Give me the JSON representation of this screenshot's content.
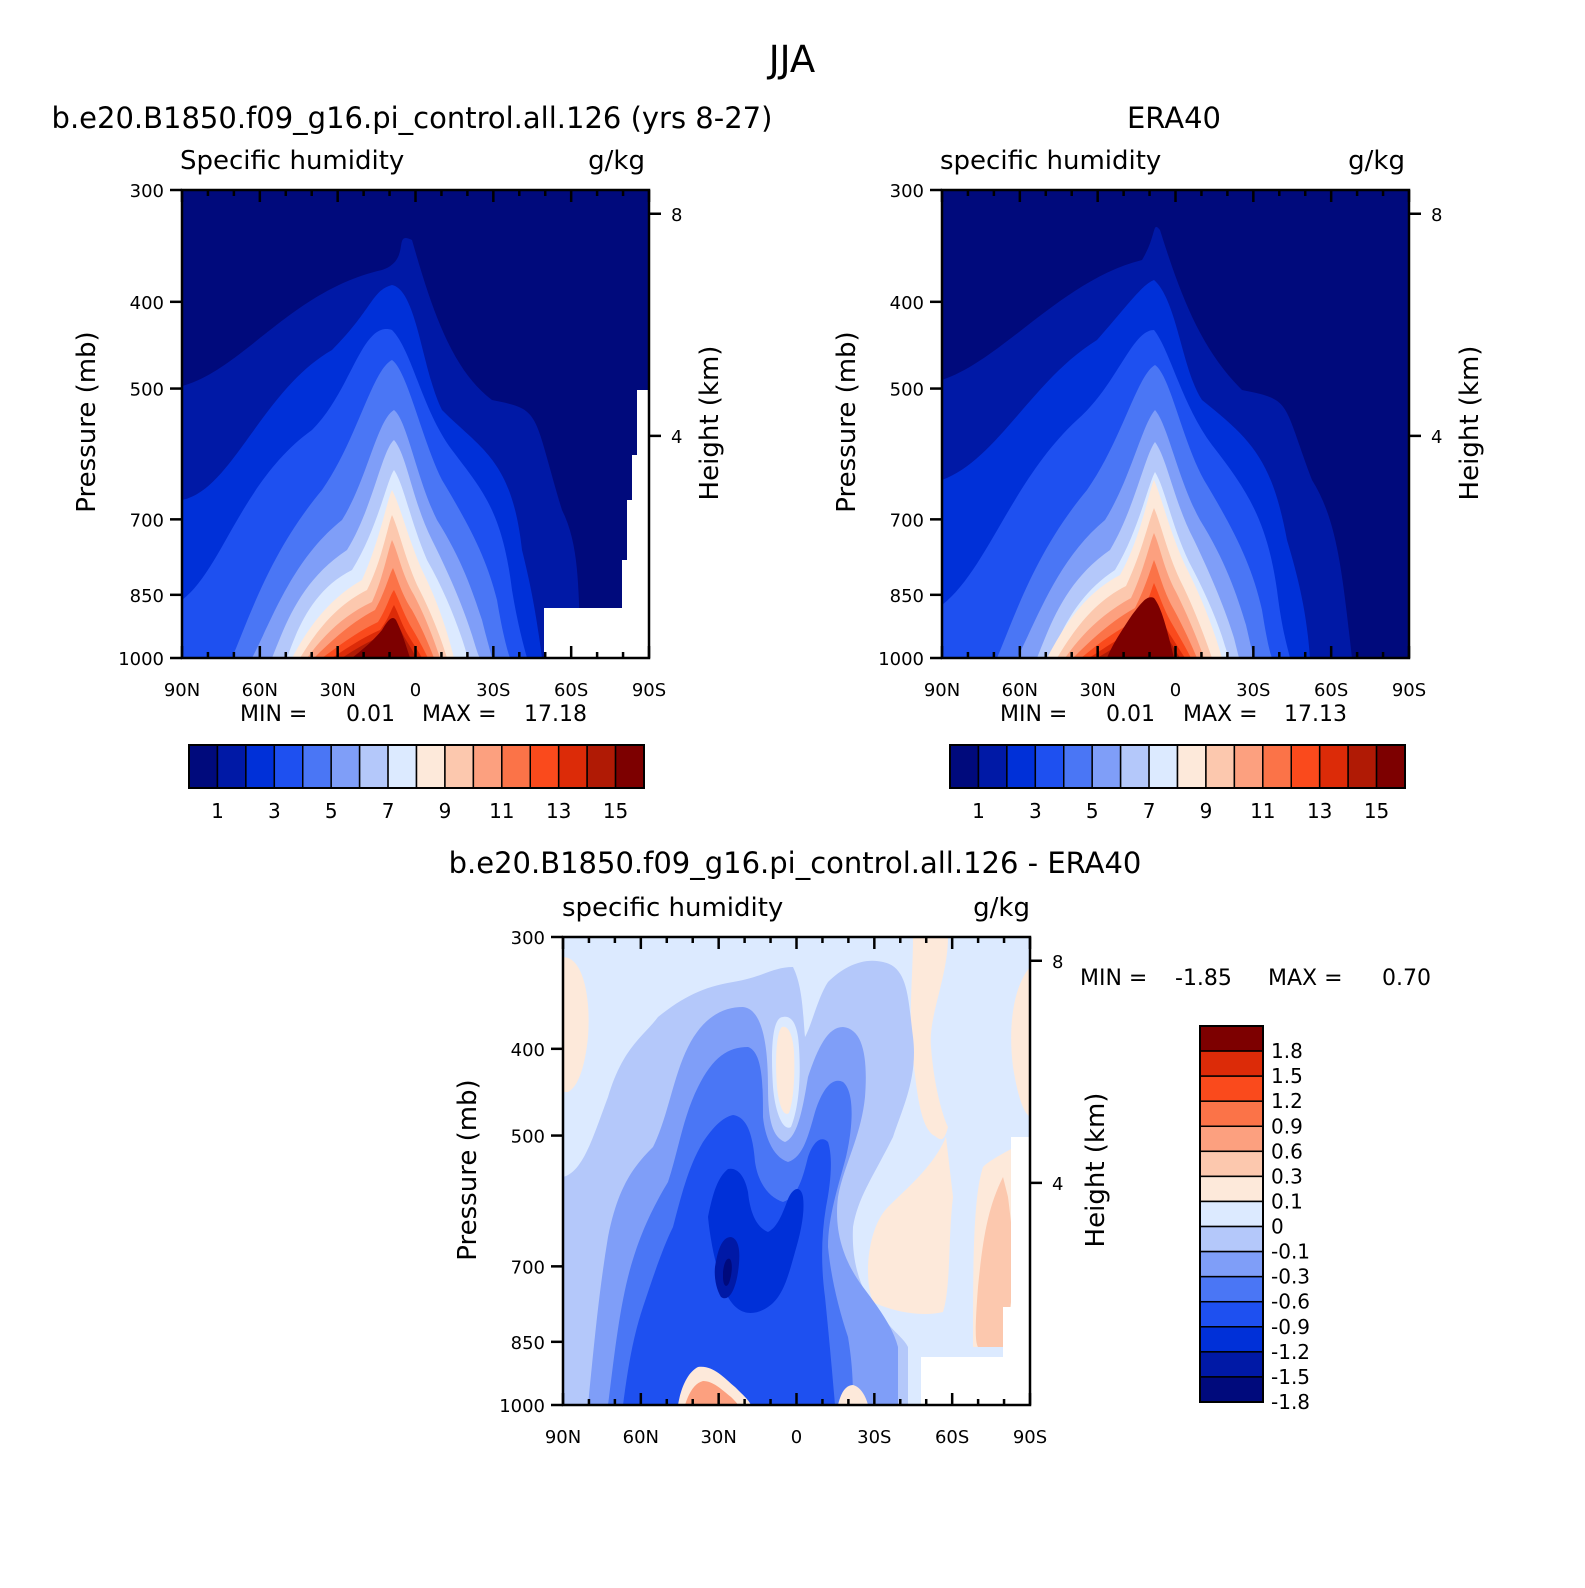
{
  "figure": {
    "title": "JJA"
  },
  "colors": {
    "abs_palette": [
      "#000a7c",
      "#0019a6",
      "#0030d8",
      "#1e50f0",
      "#4a76f5",
      "#7f9ef8",
      "#b4c8fa",
      "#dceaff",
      "#fde9da",
      "#fcc8ae",
      "#fca07f",
      "#fb7348",
      "#fa4a1c",
      "#dc2b08",
      "#b01a05",
      "#7d0000"
    ],
    "diff_palette": [
      "#000a7c",
      "#0019a6",
      "#0030d8",
      "#1e50f0",
      "#4a76f5",
      "#7f9ef8",
      "#b4c8fa",
      "#dceaff",
      "#fde9da",
      "#fcc8ae",
      "#fca07f",
      "#fb7348",
      "#fa4a1c",
      "#dc2b08",
      "#7d0000"
    ]
  },
  "panels": [
    {
      "title": "b.e20.B1850.f09_g16.pi_control.all.126 (yrs 8-27)",
      "left_label": "Specific humidity",
      "right_label": "g/kg",
      "ylabel": "Pressure (mb)",
      "ylabel2": "Height (km)",
      "min_text": "MIN =",
      "min_value": "0.01",
      "max_text": "MAX =",
      "max_value": "17.18"
    },
    {
      "title": "ERA40",
      "left_label": "specific humidity",
      "right_label": "g/kg",
      "ylabel": "Pressure (mb)",
      "ylabel2": "Height (km)",
      "min_text": "MIN =",
      "min_value": "0.01",
      "max_text": "MAX =",
      "max_value": "17.13"
    },
    {
      "title": "b.e20.B1850.f09_g16.pi_control.all.126 - ERA40",
      "left_label": "specific humidity",
      "right_label": "g/kg",
      "ylabel": "Pressure (mb)",
      "ylabel2": "Height (km)",
      "min_text": "MIN =",
      "min_value": "-1.85",
      "max_text": "MAX =",
      "max_value": "0.70"
    }
  ],
  "chart_data": {
    "type": "heatmap",
    "title": "JJA",
    "variable": "specific humidity",
    "units": "g/kg",
    "xlabel": "",
    "ylabel": "Pressure (mb)",
    "y2label": "Height (km)",
    "x_tick_labels": [
      "90N",
      "60N",
      "30N",
      "0",
      "30S",
      "60S",
      "90S"
    ],
    "x_ticks": [
      90,
      60,
      30,
      0,
      -30,
      -60,
      -90
    ],
    "xlim": [
      90,
      -90
    ],
    "y_tick_labels": [
      "300",
      "400",
      "500",
      "700",
      "850",
      "1000"
    ],
    "y_ticks": [
      300,
      400,
      500,
      700,
      850,
      1000
    ],
    "ylim": [
      1000,
      300
    ],
    "y2_tick_labels": [
      "8",
      "4"
    ],
    "y2_ticks": [
      8,
      4
    ],
    "abs_levels": [
      "1",
      "3",
      "5",
      "7",
      "9",
      "11",
      "13",
      "15"
    ],
    "abs_level_values": [
      1,
      3,
      5,
      7,
      9,
      11,
      13,
      15
    ],
    "diff_levels": [
      "1.8",
      "1.5",
      "1.2",
      "0.9",
      "0.6",
      "0.3",
      "0.1",
      "0",
      "-0.1",
      "-0.3",
      "-0.6",
      "-0.9",
      "-1.2",
      "-1.5",
      "-1.8"
    ],
    "diff_level_values": [
      1.8,
      1.5,
      1.2,
      0.9,
      0.6,
      0.3,
      0.1,
      0,
      -0.1,
      -0.3,
      -0.6,
      -0.9,
      -1.2,
      -1.5,
      -1.8
    ],
    "series": [
      {
        "name": "b.e20.B1850.f09_g16.pi_control.all.126 (yrs 8-27)",
        "min": 0.01,
        "max": 17.18
      },
      {
        "name": "ERA40",
        "min": 0.01,
        "max": 17.13
      },
      {
        "name": "b.e20.B1850.f09_g16.pi_control.all.126 - ERA40",
        "min": -1.85,
        "max": 0.7
      }
    ]
  }
}
